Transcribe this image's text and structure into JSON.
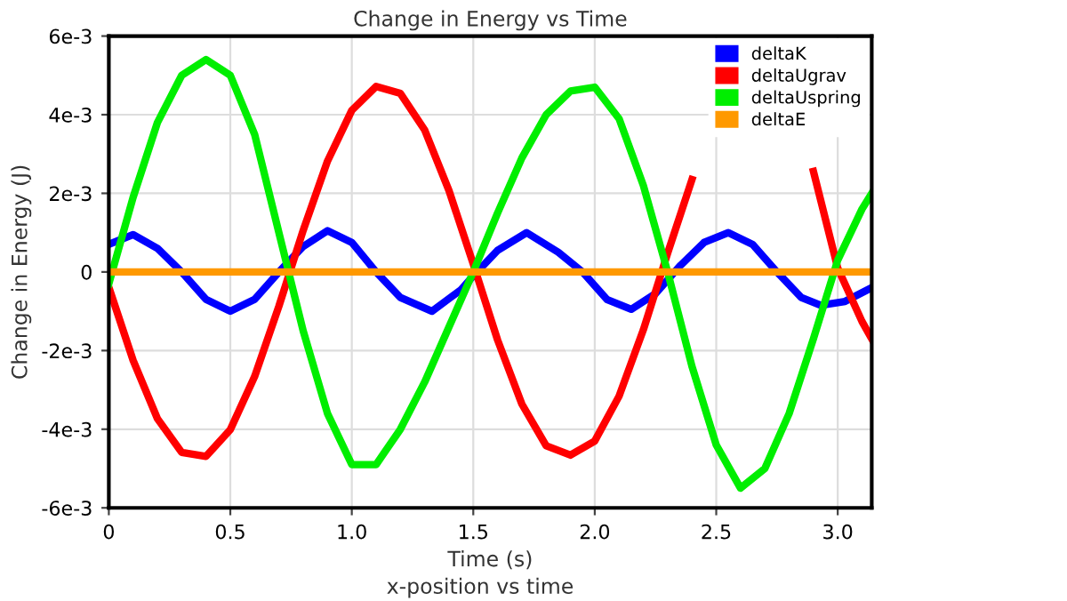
{
  "chart_data": {
    "type": "line",
    "title": "Change in Energy vs Time",
    "xlabel": "Time (s)",
    "ylabel": "Change in Energy (J)",
    "annotations": [
      "x-position vs time"
    ],
    "xlim": [
      0,
      3.14
    ],
    "xticks": [
      {
        "value": 0,
        "label": "0"
      },
      0.5,
      {
        "value": 1,
        "label": "1.0"
      },
      1.5,
      {
        "value": 2,
        "label": "2.0"
      },
      2.5,
      {
        "value": 3,
        "label": "3.0"
      }
    ],
    "ylim": [
      -0.006,
      0.006
    ],
    "yticks": [
      {
        "value": -0.006,
        "label": "-6e-3"
      },
      {
        "value": -0.004,
        "label": "-4e-3"
      },
      {
        "value": -0.002,
        "label": "-2e-3"
      },
      {
        "value": 0,
        "label": "0"
      },
      {
        "value": 0.002,
        "label": "2e-3"
      },
      {
        "value": 0.004,
        "label": "4e-3"
      },
      {
        "value": 0.006,
        "label": "6e-3"
      }
    ],
    "grid": true,
    "legend": "top right",
    "marker": "none",
    "line_style": "solid",
    "series": [
      {
        "name": "deltaK",
        "color": "#0000ff",
        "x": [
          0,
          0.1,
          0.2,
          0.3,
          0.4,
          0.5,
          0.6,
          0.7,
          0.8,
          0.9,
          1.0,
          1.1,
          1.2,
          1.33,
          1.45,
          1.5,
          1.6,
          1.72,
          1.85,
          1.95,
          2.05,
          2.15,
          2.25,
          2.35,
          2.45,
          2.55,
          2.65,
          2.75,
          2.85,
          2.93,
          3.03,
          3.14
        ],
        "values": [
          0.0007,
          0.00095,
          0.0006,
          0,
          -0.0007,
          -0.001,
          -0.0007,
          0,
          0.00065,
          0.00105,
          0.00075,
          0,
          -0.00065,
          -0.001,
          -0.00045,
          -0.0001,
          0.00055,
          0.001,
          0.0005,
          0,
          -0.0007,
          -0.00095,
          -0.00055,
          0.00015,
          0.00075,
          0.001,
          0.0007,
          0,
          -0.00065,
          -0.00085,
          -0.00075,
          -0.0004
        ]
      },
      {
        "name": "deltaUgrav",
        "color": "#ff0000",
        "x": [
          0,
          0.1,
          0.2,
          0.3,
          0.4,
          0.5,
          0.6,
          0.7,
          0.8,
          0.9,
          1.0,
          1.1,
          1.2,
          1.3,
          1.4,
          1.5,
          1.6,
          1.7,
          1.8,
          1.9,
          2.0,
          2.1,
          2.2,
          2.3,
          2.4,
          2.5,
          2.6,
          2.7,
          2.8,
          2.9,
          3.0,
          3.1,
          3.14
        ],
        "values": [
          -0.00039,
          -0.00225,
          -0.00373,
          -0.00459,
          -0.00469,
          -0.00401,
          -0.00266,
          -0.00087,
          0.00106,
          0.00282,
          0.00411,
          0.00472,
          0.00454,
          0.00361,
          0.00207,
          0.0002,
          -0.00173,
          -0.00336,
          -0.00442,
          -0.00466,
          -0.0043,
          -0.00316,
          -0.00147,
          0.00048,
          0.00235,
          null,
          null,
          null,
          null,
          0.00256,
          0.0001,
          -0.00126,
          -0.0017
        ]
      },
      {
        "name": "deltaUspring",
        "color": "#00ee00",
        "x": [
          0,
          0.1,
          0.2,
          0.3,
          0.4,
          0.5,
          0.6,
          0.7,
          0.8,
          0.9,
          1.0,
          1.1,
          1.2,
          1.3,
          1.4,
          1.5,
          1.6,
          1.7,
          1.8,
          1.9,
          2.0,
          2.1,
          2.2,
          2.3,
          2.4,
          2.5,
          2.6,
          2.7,
          2.8,
          2.9,
          3.0,
          3.1,
          3.14
        ],
        "values": [
          -0.0003,
          0.0019,
          0.0038,
          0.005,
          0.0054,
          0.005,
          0.0035,
          0.001,
          -0.0015,
          -0.0036,
          -0.0049,
          -0.0049,
          -0.004,
          -0.0028,
          -0.0014,
          0,
          0.0015,
          0.0029,
          0.004,
          0.0046,
          0.0047,
          0.0039,
          0.0022,
          0,
          -0.0024,
          -0.0044,
          -0.0055,
          -0.005,
          -0.0036,
          -0.0017,
          0.0003,
          0.0016,
          0.002
        ]
      },
      {
        "name": "deltaE",
        "color": "#ff9900",
        "x": [
          0,
          0.5,
          1.0,
          1.5,
          2.0,
          2.5,
          3.14
        ],
        "values": [
          0,
          0,
          0,
          0,
          0,
          0,
          0
        ]
      }
    ]
  }
}
